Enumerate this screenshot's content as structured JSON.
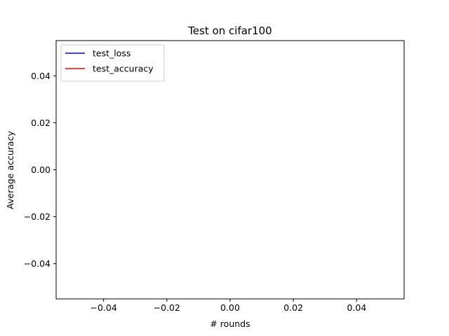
{
  "chart_data": {
    "type": "line",
    "title": "Test on cifar100",
    "xlabel": "# rounds",
    "ylabel": "Average accuracy",
    "xlim": [
      -0.055,
      0.055
    ],
    "ylim": [
      -0.055,
      0.055
    ],
    "x_ticks": [
      -0.04,
      -0.02,
      0.0,
      0.02,
      0.04
    ],
    "x_tick_labels": [
      "−0.04",
      "−0.02",
      "0.00",
      "0.02",
      "0.04"
    ],
    "y_ticks": [
      -0.04,
      -0.02,
      0.0,
      0.02,
      0.04
    ],
    "y_tick_labels": [
      "−0.04",
      "−0.02",
      "0.00",
      "0.02",
      "0.04"
    ],
    "grid": false,
    "legend_position": "upper-left",
    "series": [
      {
        "name": "test_loss",
        "color": "#0000ff",
        "x": [],
        "y": []
      },
      {
        "name": "test_accuracy",
        "color": "#ff0000",
        "x": [],
        "y": []
      }
    ]
  }
}
